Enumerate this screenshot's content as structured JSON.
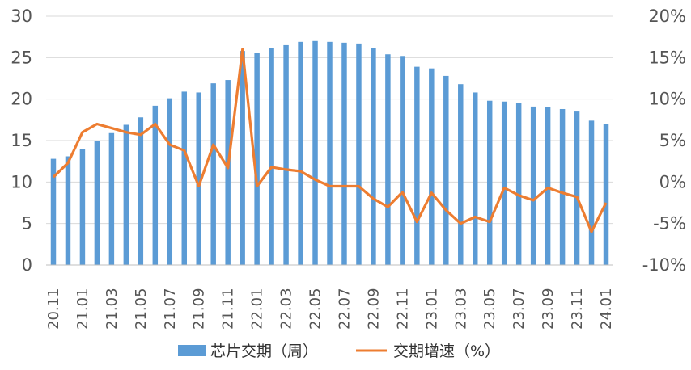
{
  "chart_data": {
    "type": "bar",
    "categories": [
      "20.11",
      "20.12",
      "21.01",
      "21.02",
      "21.03",
      "21.04",
      "21.05",
      "21.06",
      "21.07",
      "21.08",
      "21.09",
      "21.10",
      "21.11",
      "21.12",
      "22.01",
      "22.02",
      "22.03",
      "22.04",
      "22.05",
      "22.06",
      "22.07",
      "22.08",
      "22.09",
      "22.10",
      "22.11",
      "22.12",
      "23.01",
      "23.02",
      "23.03",
      "23.04",
      "23.05",
      "23.06",
      "23.07",
      "23.08",
      "23.09",
      "23.10",
      "23.11",
      "23.12",
      "24.01"
    ],
    "x_tick_labels": [
      "20.11",
      "21.01",
      "21.03",
      "21.05",
      "21.07",
      "21.09",
      "21.11",
      "22.01",
      "22.03",
      "22.05",
      "22.07",
      "22.09",
      "22.11",
      "23.01",
      "23.03",
      "23.05",
      "23.07",
      "23.09",
      "23.11",
      "24.01"
    ],
    "series": [
      {
        "name": "芯片交期（周）",
        "type": "bar",
        "axis": "left",
        "color": "#5b9bd5",
        "values": [
          12.8,
          13.1,
          14.0,
          15.0,
          15.9,
          16.9,
          17.8,
          19.2,
          20.1,
          20.9,
          20.8,
          21.9,
          22.3,
          25.8,
          25.6,
          26.2,
          26.5,
          26.9,
          27.0,
          26.9,
          26.8,
          26.7,
          26.2,
          25.4,
          25.2,
          23.9,
          23.7,
          22.8,
          21.8,
          20.8,
          19.8,
          19.7,
          19.5,
          19.1,
          19.0,
          18.8,
          18.5,
          17.4,
          17.0
        ]
      },
      {
        "name": "交期增速（%）",
        "type": "line",
        "axis": "right",
        "color": "#ed7d31",
        "values": [
          0.6,
          2.3,
          6.0,
          7.0,
          6.5,
          6.0,
          5.7,
          7.0,
          4.5,
          3.8,
          -0.5,
          4.5,
          1.7,
          16.0,
          -0.5,
          1.8,
          1.5,
          1.3,
          0.3,
          -0.5,
          -0.5,
          -0.5,
          -2.0,
          -3.0,
          -1.2,
          -4.8,
          -1.3,
          -3.4,
          -5.0,
          -4.2,
          -4.8,
          -0.7,
          -1.6,
          -2.2,
          -0.7,
          -1.3,
          -1.8,
          -6.0,
          -2.5
        ]
      }
    ],
    "y_left": {
      "ylim": [
        0,
        30
      ],
      "ticks": [
        "0",
        "5",
        "10",
        "15",
        "20",
        "25",
        "30"
      ]
    },
    "y_right": {
      "ylim": [
        -10,
        20
      ],
      "ticks": [
        "-10%",
        "-5%",
        "0%",
        "5%",
        "10%",
        "15%",
        "20%"
      ]
    },
    "grid": true,
    "legend": "bottom"
  }
}
